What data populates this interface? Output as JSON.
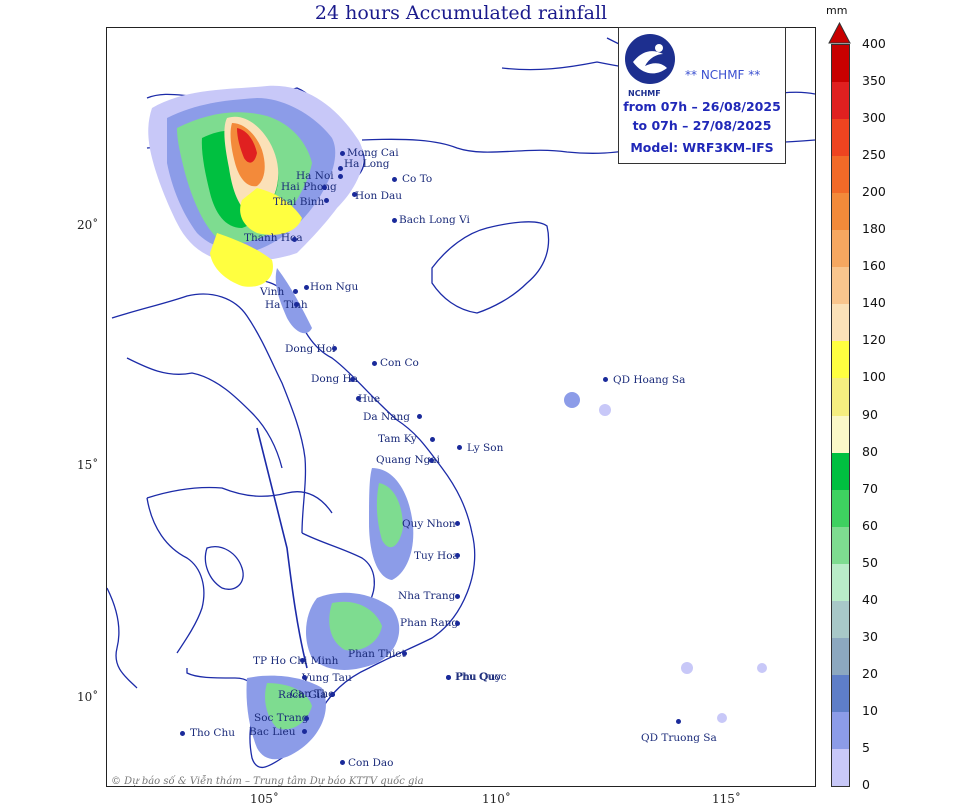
{
  "title": "24 hours Accumulated rainfall",
  "legend": {
    "unit": "mm",
    "ticks": [
      "400",
      "350",
      "300",
      "250",
      "200",
      "180",
      "160",
      "140",
      "120",
      "100",
      "90",
      "80",
      "70",
      "60",
      "50",
      "40",
      "30",
      "20",
      "10",
      "5",
      "0"
    ],
    "colors": [
      "#c80000",
      "#e02020",
      "#ee4420",
      "#f26a28",
      "#f38a3a",
      "#f6a760",
      "#f9c58d",
      "#fbe1b8",
      "#ffff40",
      "#f5ee80",
      "#fbf8c8",
      "#00c040",
      "#3ed160",
      "#7edc90",
      "#b9ecc8",
      "#a8c8c8",
      "#8ca8c0",
      "#5e7ec8",
      "#8c9ce8",
      "#c8c8f8",
      "#ffffff"
    ]
  },
  "info": {
    "logo_text": "NCHMF",
    "org": "** NCHMF **",
    "from": "from 07h – 26/08/2025",
    "to": "to 07h – 27/08/2025",
    "model": "Model: WRF3KM–IFS"
  },
  "axes": {
    "lat": [
      "20˚",
      "15˚",
      "10˚"
    ],
    "lon": [
      "105˚",
      "110˚",
      "115˚"
    ]
  },
  "places": [
    {
      "name": "Mong Cai"
    },
    {
      "name": "Ha Long"
    },
    {
      "name": "Co To"
    },
    {
      "name": "Ha Noi"
    },
    {
      "name": "Hon Dau"
    },
    {
      "name": "Hai Phong"
    },
    {
      "name": "Thai Binh"
    },
    {
      "name": "Bach Long Vi"
    },
    {
      "name": "Thanh Hoa"
    },
    {
      "name": "Hon Ngu"
    },
    {
      "name": "Vinh"
    },
    {
      "name": "Ha Tinh"
    },
    {
      "name": "Dong Hoi"
    },
    {
      "name": "Con Co"
    },
    {
      "name": "Dong Ha"
    },
    {
      "name": "Hue"
    },
    {
      "name": "Da Nang"
    },
    {
      "name": "QD Hoang Sa"
    },
    {
      "name": "Tam Ky"
    },
    {
      "name": "Ly Son"
    },
    {
      "name": "Quang Ngai"
    },
    {
      "name": "Quy Nhon"
    },
    {
      "name": "Tuy Hoa"
    },
    {
      "name": "Nha Trang"
    },
    {
      "name": "Phan Rang"
    },
    {
      "name": "Phan Thiet"
    },
    {
      "name": "TP Ho Chi Minh"
    },
    {
      "name": "Phu Quoc"
    },
    {
      "name": "Vung Tau"
    },
    {
      "name": "Rach Gia"
    },
    {
      "name": "Can Tho"
    },
    {
      "name": "Soc Trang"
    },
    {
      "name": "Bac Lieu"
    },
    {
      "name": "Tho Chu"
    },
    {
      "name": "Con Dao"
    },
    {
      "name": "Phu Quy"
    },
    {
      "name": "QD Truong Sa"
    }
  ],
  "credit": "© Dự báo số & Viễn thám – Trung tâm Dự báo KTTV quốc gia"
}
